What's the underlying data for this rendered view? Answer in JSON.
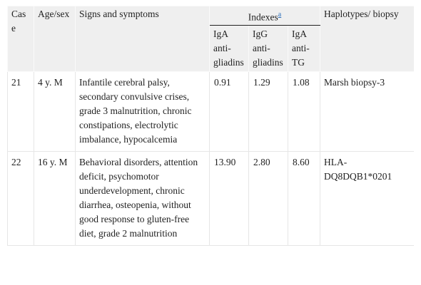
{
  "table": {
    "header": {
      "case": "Case",
      "age_sex": "Age/sex",
      "signs": "Signs and symptoms",
      "indexes": "Indexes",
      "indexes_note": "a",
      "haplotypes": "Haplotypes/ biopsy",
      "sub": [
        "IgA anti-gliadins",
        "IgG anti-gliadins",
        "IgA anti-TG"
      ]
    },
    "rows": [
      [
        "21",
        "4 y. M",
        "Infantile cerebral palsy, secondary convulsive crises, grade 3 malnutrition, chronic constipations, electrolytic imbalance, hypocalcemia",
        "0.91",
        "1.29",
        "1.08",
        "Marsh biopsy-3"
      ],
      [
        "22",
        "16 y. M",
        "Behavioral disorders, attention deficit, psychomotor underdevelopment, chronic diarrhea, osteopenia, without good response to gluten-free diet, grade 2 malnutrition",
        "13.90",
        "2.80",
        "8.60",
        "HLA-DQ8DQB1*0201"
      ]
    ]
  }
}
